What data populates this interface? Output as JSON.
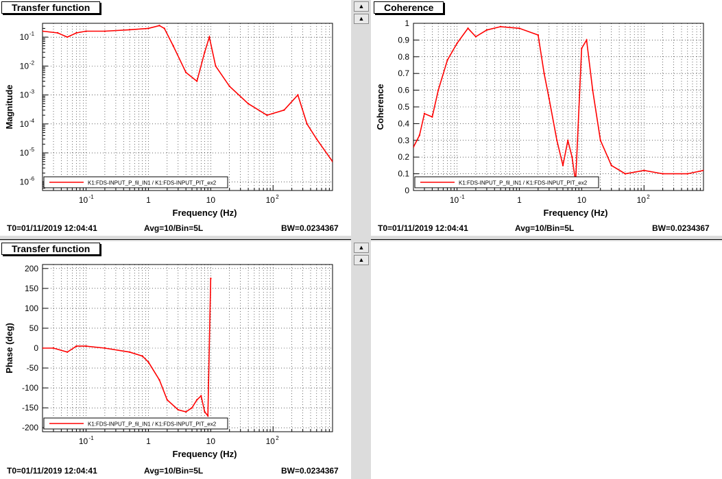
{
  "panels": [
    {
      "title": "Transfer function",
      "status": {
        "t0": "T0=01/11/2019 12:04:41",
        "avg": "Avg=10/Bin=5L",
        "bw": "BW=0.0234367"
      }
    },
    {
      "title": "Coherence",
      "status": {
        "t0": "T0=01/11/2019 12:04:41",
        "avg": "Avg=10/Bin=5L",
        "bw": "BW=0.0234367"
      }
    },
    {
      "title": "Transfer function",
      "status": {
        "t0": "T0=01/11/2019 12:04:41",
        "avg": "Avg=10/Bin=5L",
        "bw": "BW=0.0234367"
      }
    }
  ],
  "icons": {
    "arrow_up": "up-arrow-icon"
  },
  "colors": {
    "trace": "#ff0000",
    "background": "#dcdcdc"
  },
  "chart_data": [
    {
      "type": "line",
      "xlabel": "Frequency (Hz)",
      "ylabel": "Magnitude",
      "xscale": "log",
      "yscale": "log",
      "xlim": [
        0.02,
        900
      ],
      "ylim": [
        5e-07,
        0.3
      ],
      "xticks": [
        "10",
        "1",
        "10",
        "10"
      ],
      "xtick_exp": [
        "-1",
        "",
        "",
        "2"
      ],
      "yticks": [
        "10",
        "10",
        "10",
        "10",
        "10",
        "10"
      ],
      "ytick_exp": [
        "-1",
        "-2",
        "-3",
        "-4",
        "-5",
        "-6"
      ],
      "grid": true,
      "legend": "bottom",
      "series": [
        {
          "name": "K1:FDS-INPUT_P_fil_IN1 / K1:FDS-INPUT_PIT_ex2",
          "x": [
            0.02,
            0.035,
            0.05,
            0.07,
            0.1,
            0.2,
            0.5,
            1,
            1.5,
            1.8,
            2.5,
            4,
            6,
            8,
            9.5,
            12,
            20,
            40,
            80,
            150,
            250,
            350,
            500,
            900
          ],
          "y": [
            0.16,
            0.14,
            0.1,
            0.14,
            0.16,
            0.16,
            0.18,
            0.2,
            0.25,
            0.2,
            0.05,
            0.006,
            0.003,
            0.03,
            0.1,
            0.01,
            0.002,
            0.0005,
            0.0002,
            0.0003,
            0.001,
            0.0001,
            3e-05,
            5e-06
          ]
        }
      ]
    },
    {
      "type": "line",
      "xlabel": "Frequency (Hz)",
      "ylabel": "Coherence",
      "xscale": "log",
      "yscale": "linear",
      "xlim": [
        0.02,
        900
      ],
      "ylim": [
        0,
        1
      ],
      "xticks": [
        "10",
        "1",
        "10",
        "10"
      ],
      "xtick_exp": [
        "-1",
        "",
        "",
        "2"
      ],
      "yticks": [
        "0",
        "0.1",
        "0.2",
        "0.3",
        "0.4",
        "0.5",
        "0.6",
        "0.7",
        "0.8",
        "0.9",
        "1"
      ],
      "grid": true,
      "legend": "bottom",
      "series": [
        {
          "name": "K1:FDS-INPUT_P_fil_IN1 / K1:FDS-INPUT_PIT_ex2",
          "x": [
            0.02,
            0.025,
            0.03,
            0.04,
            0.05,
            0.07,
            0.1,
            0.15,
            0.2,
            0.3,
            0.5,
            1,
            2,
            2.5,
            3,
            4,
            5,
            6,
            7,
            8,
            10,
            12,
            15,
            20,
            30,
            50,
            100,
            200,
            500,
            900
          ],
          "y": [
            0.26,
            0.33,
            0.46,
            0.44,
            0.6,
            0.78,
            0.88,
            0.97,
            0.92,
            0.96,
            0.98,
            0.97,
            0.93,
            0.7,
            0.55,
            0.3,
            0.15,
            0.3,
            0.2,
            0.05,
            0.85,
            0.9,
            0.6,
            0.3,
            0.15,
            0.1,
            0.12,
            0.1,
            0.1,
            0.12
          ]
        }
      ]
    },
    {
      "type": "line",
      "xlabel": "Frequency (Hz)",
      "ylabel": "Phase (deg)",
      "xscale": "log",
      "yscale": "linear",
      "xlim": [
        0.02,
        900
      ],
      "ylim": [
        -210,
        210
      ],
      "xticks": [
        "10",
        "1",
        "10",
        "10"
      ],
      "xtick_exp": [
        "-1",
        "",
        "",
        "2"
      ],
      "yticks": [
        "-200",
        "-150",
        "-100",
        "-50",
        "0",
        "50",
        "100",
        "150",
        "200"
      ],
      "grid": true,
      "legend": "bottom",
      "series": [
        {
          "name": "K1:FDS-INPUT_P_fil_IN1 / K1:FDS-INPUT_PIT_ex2",
          "x": [
            0.02,
            0.03,
            0.05,
            0.07,
            0.1,
            0.2,
            0.5,
            0.8,
            1,
            1.5,
            2,
            3,
            4,
            5,
            6,
            7,
            8,
            9,
            10
          ],
          "y": [
            0,
            0,
            -10,
            5,
            5,
            0,
            -10,
            -20,
            -35,
            -80,
            -130,
            -155,
            -160,
            -150,
            -130,
            -120,
            -160,
            -170,
            175
          ]
        }
      ]
    }
  ]
}
